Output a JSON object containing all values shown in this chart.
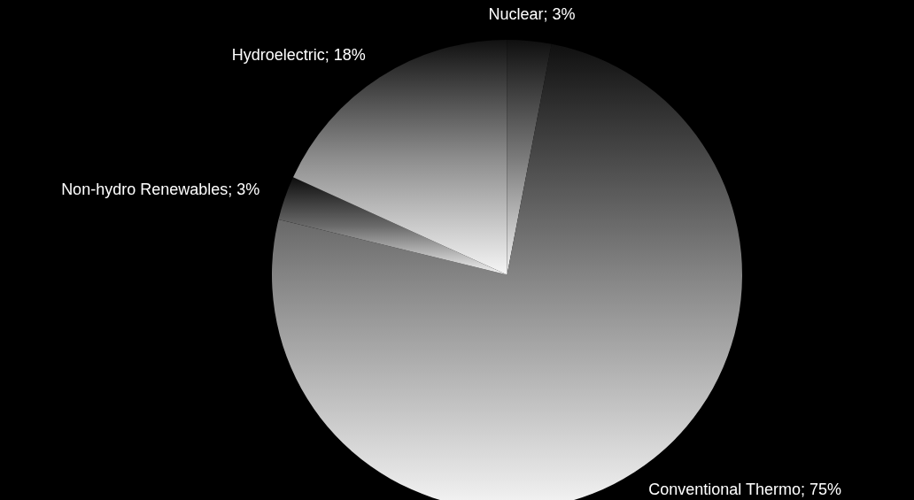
{
  "chart_data": {
    "type": "pie",
    "categories": [
      "Nuclear",
      "Conventional Thermo",
      "Non-hydro Renewables",
      "Hydroelectric"
    ],
    "values": [
      3,
      75,
      3,
      18
    ],
    "value_labels": [
      "3%",
      "75%",
      "3%",
      "18%"
    ],
    "colors": [
      "#7a7a7a",
      "#858585",
      "#6a6a6a",
      "#8c8c8c"
    ]
  }
}
